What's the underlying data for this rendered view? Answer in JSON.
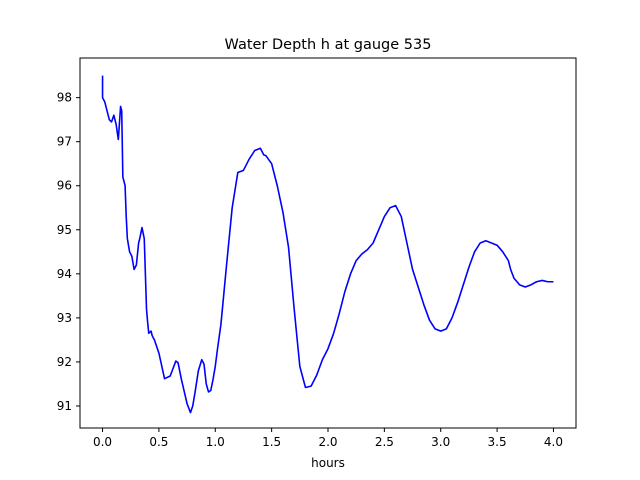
{
  "chart_data": {
    "type": "line",
    "title": "Water Depth h at gauge 535",
    "xlabel": "hours",
    "ylabel": "",
    "xlim": [
      -0.2,
      4.2
    ],
    "ylim": [
      90.5,
      98.9
    ],
    "x_ticks": [
      0.0,
      0.5,
      1.0,
      1.5,
      2.0,
      2.5,
      3.0,
      3.5,
      4.0
    ],
    "x_tick_labels": [
      "0.0",
      "0.5",
      "1.0",
      "1.5",
      "2.0",
      "2.5",
      "3.0",
      "3.5",
      "4.0"
    ],
    "y_ticks": [
      91,
      92,
      93,
      94,
      95,
      96,
      97,
      98
    ],
    "y_tick_labels": [
      "91",
      "92",
      "93",
      "94",
      "95",
      "96",
      "97",
      "98"
    ],
    "grid": false,
    "legend": "none",
    "line_color": "#0000ff",
    "series": [
      {
        "x": [
          0.0,
          0.0,
          0.02,
          0.04,
          0.06,
          0.08,
          0.1,
          0.12,
          0.14,
          0.16,
          0.17,
          0.18,
          0.2,
          0.21,
          0.22,
          0.24,
          0.26,
          0.28,
          0.3,
          0.32,
          0.33,
          0.35,
          0.37,
          0.39,
          0.4,
          0.41,
          0.43,
          0.44,
          0.45,
          0.46,
          0.5,
          0.55,
          0.6,
          0.65,
          0.67,
          0.7,
          0.75,
          0.78,
          0.8,
          0.82,
          0.85,
          0.88,
          0.9,
          0.92,
          0.94,
          0.96,
          0.98,
          1.0,
          1.02,
          1.05,
          1.1,
          1.15,
          1.2,
          1.25,
          1.3,
          1.35,
          1.4,
          1.43,
          1.45,
          1.5,
          1.52,
          1.55,
          1.6,
          1.65,
          1.7,
          1.75,
          1.8,
          1.85,
          1.9,
          1.95,
          2.0,
          2.05,
          2.1,
          2.15,
          2.2,
          2.25,
          2.3,
          2.35,
          2.4,
          2.45,
          2.5,
          2.55,
          2.6,
          2.65,
          2.7,
          2.75,
          2.8,
          2.85,
          2.9,
          2.95,
          3.0,
          3.05,
          3.1,
          3.15,
          3.2,
          3.25,
          3.3,
          3.35,
          3.4,
          3.45,
          3.5,
          3.55,
          3.6,
          3.62,
          3.65,
          3.7,
          3.75,
          3.8,
          3.85,
          3.9,
          3.95,
          4.0
        ],
        "values": [
          98.5,
          98.0,
          97.9,
          97.7,
          97.5,
          97.45,
          97.6,
          97.4,
          97.05,
          97.8,
          97.7,
          96.2,
          96.0,
          95.3,
          94.8,
          94.5,
          94.4,
          94.1,
          94.2,
          94.7,
          94.8,
          95.05,
          94.8,
          93.2,
          92.9,
          92.65,
          92.7,
          92.6,
          92.55,
          92.5,
          92.2,
          91.62,
          91.68,
          92.02,
          91.98,
          91.6,
          91.05,
          90.85,
          91.0,
          91.3,
          91.8,
          92.05,
          91.95,
          91.5,
          91.32,
          91.35,
          91.6,
          91.9,
          92.3,
          92.85,
          94.2,
          95.5,
          96.3,
          96.35,
          96.6,
          96.8,
          96.85,
          96.7,
          96.68,
          96.5,
          96.3,
          96.0,
          95.4,
          94.6,
          93.2,
          91.9,
          91.42,
          91.45,
          91.7,
          92.05,
          92.3,
          92.65,
          93.1,
          93.6,
          94.0,
          94.3,
          94.45,
          94.55,
          94.7,
          95.0,
          95.3,
          95.5,
          95.55,
          95.3,
          94.7,
          94.1,
          93.7,
          93.3,
          92.95,
          92.75,
          92.7,
          92.75,
          93.0,
          93.35,
          93.75,
          94.15,
          94.5,
          94.7,
          94.75,
          94.7,
          94.65,
          94.5,
          94.3,
          94.1,
          93.9,
          93.75,
          93.7,
          93.75,
          93.82,
          93.85,
          93.82,
          93.82
        ]
      }
    ]
  }
}
